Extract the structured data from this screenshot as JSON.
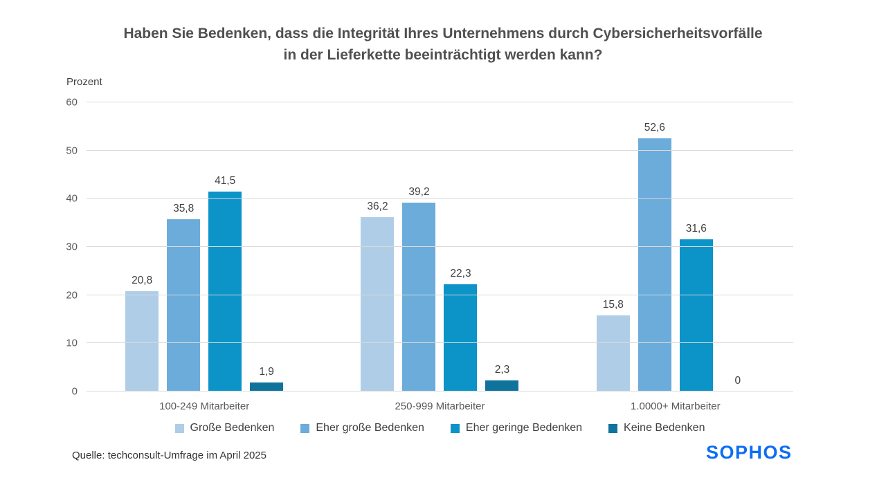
{
  "header": {
    "title_lines": [
      "Haben Sie Bedenken, dass die Integrität Ihres Unternehmens durch Cybersicherheitsvorfälle",
      "in der Lieferkette beeinträchtigt werden kann?"
    ]
  },
  "chart_data": {
    "type": "bar",
    "title": "Haben Sie Bedenken, dass die Integrität Ihres Unternehmens durch Cybersicherheitsvorfälle in der Lieferkette beeinträchtigt werden kann?",
    "ylabel": "Prozent",
    "ylim": [
      0,
      60
    ],
    "y_ticks": [
      0,
      10,
      20,
      30,
      40,
      50,
      60
    ],
    "grid": "horizontal",
    "legend_position": "bottom",
    "categories": [
      "100-249 Mitarbeiter",
      "250-999 Mitarbeiter",
      "1.0000+ Mitarbeiter"
    ],
    "series": [
      {
        "name": "Große Bedenken",
        "color": "#AFCDE7",
        "values": [
          20.8,
          36.2,
          15.8
        ],
        "labels": [
          "20,8",
          "36,2",
          "15,8"
        ]
      },
      {
        "name": "Eher große Bedenken",
        "color": "#6BACDB",
        "values": [
          35.8,
          39.2,
          52.6
        ],
        "labels": [
          "35,8",
          "39,2",
          "52,6"
        ]
      },
      {
        "name": "Eher geringe Bedenken",
        "color": "#0C93C8",
        "values": [
          41.5,
          22.3,
          31.6
        ],
        "labels": [
          "41,5",
          "22,3",
          "31,6"
        ]
      },
      {
        "name": "Keine Bedenken",
        "color": "#10739C",
        "values": [
          1.9,
          2.3,
          0
        ],
        "labels": [
          "1,9",
          "2,3",
          "0"
        ]
      }
    ],
    "colors": {
      "gridline": "#d9d9d9",
      "tick_text": "#595959",
      "value_label_text": "#404040",
      "title_text": "#505050"
    }
  },
  "footer": {
    "source": "Quelle: techconsult-Umfrage im April 2025",
    "logo": "SOPHOS",
    "logo_color": "#0D6EF2"
  }
}
